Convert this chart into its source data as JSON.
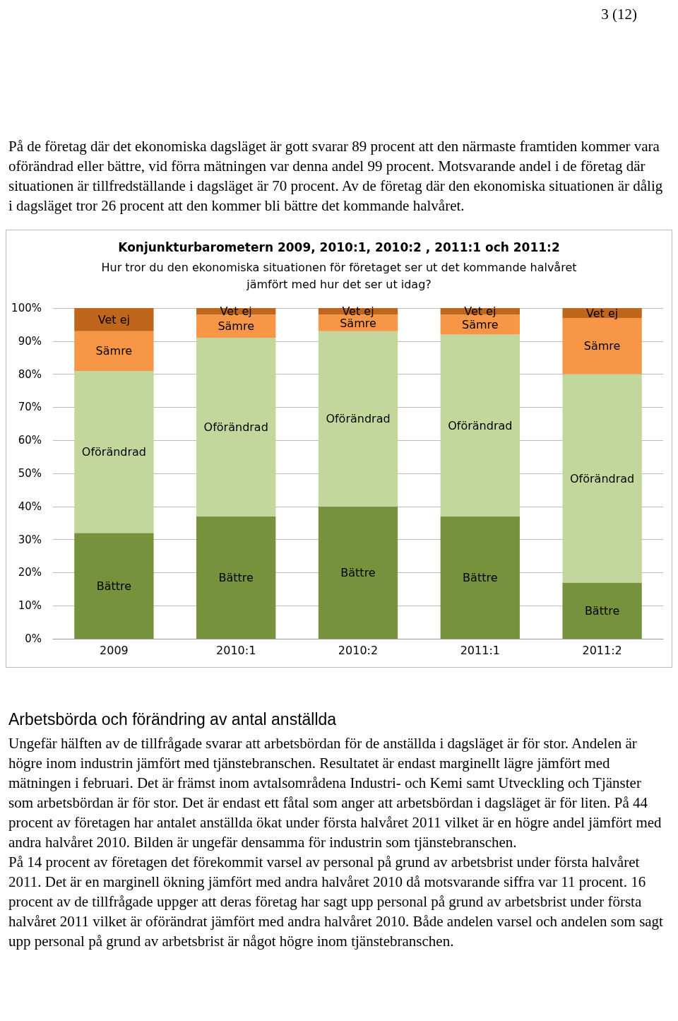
{
  "chart_data": {
    "type": "bar",
    "stacked": true,
    "title": "Konjunkturbarometern 2009, 2010:1, 2010:2 , 2011:1 och 2011:2",
    "subtitle": "Hur tror du den ekonomiska situationen för företaget ser ut det kommande halvåret\njämfört med hur det ser ut idag?",
    "categories": [
      "2009",
      "2010:1",
      "2010:2",
      "2011:1",
      "2011:2"
    ],
    "series": [
      {
        "name": "Bättre",
        "color": "#76923c",
        "values": [
          32,
          37,
          40,
          37,
          17
        ]
      },
      {
        "name": "Oförändrad",
        "color": "#c3d69b",
        "values": [
          49,
          54,
          53,
          55,
          63
        ]
      },
      {
        "name": "Sämre",
        "color": "#f79646",
        "values": [
          12,
          7,
          5,
          6,
          17
        ]
      },
      {
        "name": "Vet ej",
        "color": "#c0651c",
        "values": [
          7,
          2,
          2,
          2,
          3
        ]
      }
    ],
    "ylim": [
      0,
      100
    ],
    "yticks": [
      {
        "value": 0,
        "label": "0%"
      },
      {
        "value": 10,
        "label": "10%"
      },
      {
        "value": 20,
        "label": "20%"
      },
      {
        "value": 30,
        "label": "30%"
      },
      {
        "value": 40,
        "label": "40%"
      },
      {
        "value": 50,
        "label": "50%"
      },
      {
        "value": 60,
        "label": "60%"
      },
      {
        "value": 70,
        "label": "70%"
      },
      {
        "value": 80,
        "label": "80%"
      },
      {
        "value": 90,
        "label": "90%"
      },
      {
        "value": 100,
        "label": "100%"
      }
    ],
    "grid": "y",
    "legend": false,
    "annotations": [
      "3 (12)",
      "På de företag där det ekonomiska dagsläget är gott svarar 89 procent att den närmaste framtiden kommer vara oförändrad eller bättre, vid förra mätningen var denna andel 99 procent. Motsvarande andel i de företag där situationen är tillfredställande i dagsläget är 70 procent. Av de företag där den ekonomiska situationen är dålig i dagsläget tror 26 procent att den kommer bli bättre det kommande halvåret.",
      "Arbetsbörda och förändring av antal anställda",
      "Ungefär hälften av de tillfrågade svarar att arbetsbördan för de anställda i dagsläget är för stor. Andelen är högre inom industrin jämfört med tjänstebranschen. Resultatet är endast marginellt lägre jämfört med mätningen i februari. Det är främst inom avtalsområdena Industri- och Kemi samt Utveckling och Tjänster som arbetsbördan är för stor. Det är endast ett fåtal som anger att arbetsbördan i dagsläget är för liten.  På 44 procent av företagen har antalet anställda ökat under första halvåret 2011 vilket är en högre andel jämfört med andra halvåret 2010. Bilden är ungefär densamma för industrin som tjänstebranschen.",
      "På 14 procent av företagen det förekommit varsel av personal på grund av arbetsbrist under första halvåret 2011. Det är en marginell ökning jämfört med andra halvåret 2010 då motsvarande siffra var 11 procent. 16 procent av de tillfrågade uppger att deras företag har sagt upp personal på grund av arbetsbrist under första halvåret 2011 vilket är oförändrat jämfört med andra halvåret 2010. Både andelen varsel och andelen som sagt upp personal på grund av arbetsbrist är något högre inom tjänstebranschen."
    ]
  }
}
